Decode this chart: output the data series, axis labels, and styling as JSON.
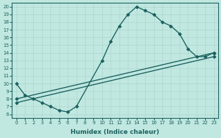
{
  "xlabel": "Humidex (Indice chaleur)",
  "xlim": [
    -0.5,
    23.5
  ],
  "ylim": [
    5.5,
    20.5
  ],
  "xticks": [
    0,
    1,
    2,
    3,
    4,
    5,
    6,
    7,
    8,
    9,
    10,
    11,
    12,
    13,
    14,
    15,
    16,
    17,
    18,
    19,
    20,
    21,
    22,
    23
  ],
  "yticks": [
    6,
    7,
    8,
    9,
    10,
    11,
    12,
    13,
    14,
    15,
    16,
    17,
    18,
    19,
    20
  ],
  "bg_color": "#c0e8e0",
  "line_color": "#1a6060",
  "grid_color": "#b0d8d0",
  "line1_x": [
    0,
    1,
    2,
    3,
    4,
    5,
    6,
    7,
    10,
    11,
    12,
    13,
    14,
    15,
    16,
    17,
    18,
    19,
    20,
    21,
    22,
    23
  ],
  "line1_y": [
    10,
    8.5,
    8,
    7.5,
    7,
    6.5,
    6.3,
    7,
    13,
    15.5,
    17.5,
    19,
    20,
    19.5,
    19,
    18,
    17.5,
    16.5,
    14.5,
    13.5,
    13.5,
    14
  ],
  "line2_x": [
    0,
    23
  ],
  "line2_y": [
    8,
    14
  ],
  "line3_x": [
    0,
    23
  ],
  "line3_y": [
    7.5,
    13.5
  ],
  "marker": "D",
  "markersize": 2.5,
  "linewidth": 1.0,
  "tick_fontsize": 5.0,
  "label_fontsize": 6.5
}
